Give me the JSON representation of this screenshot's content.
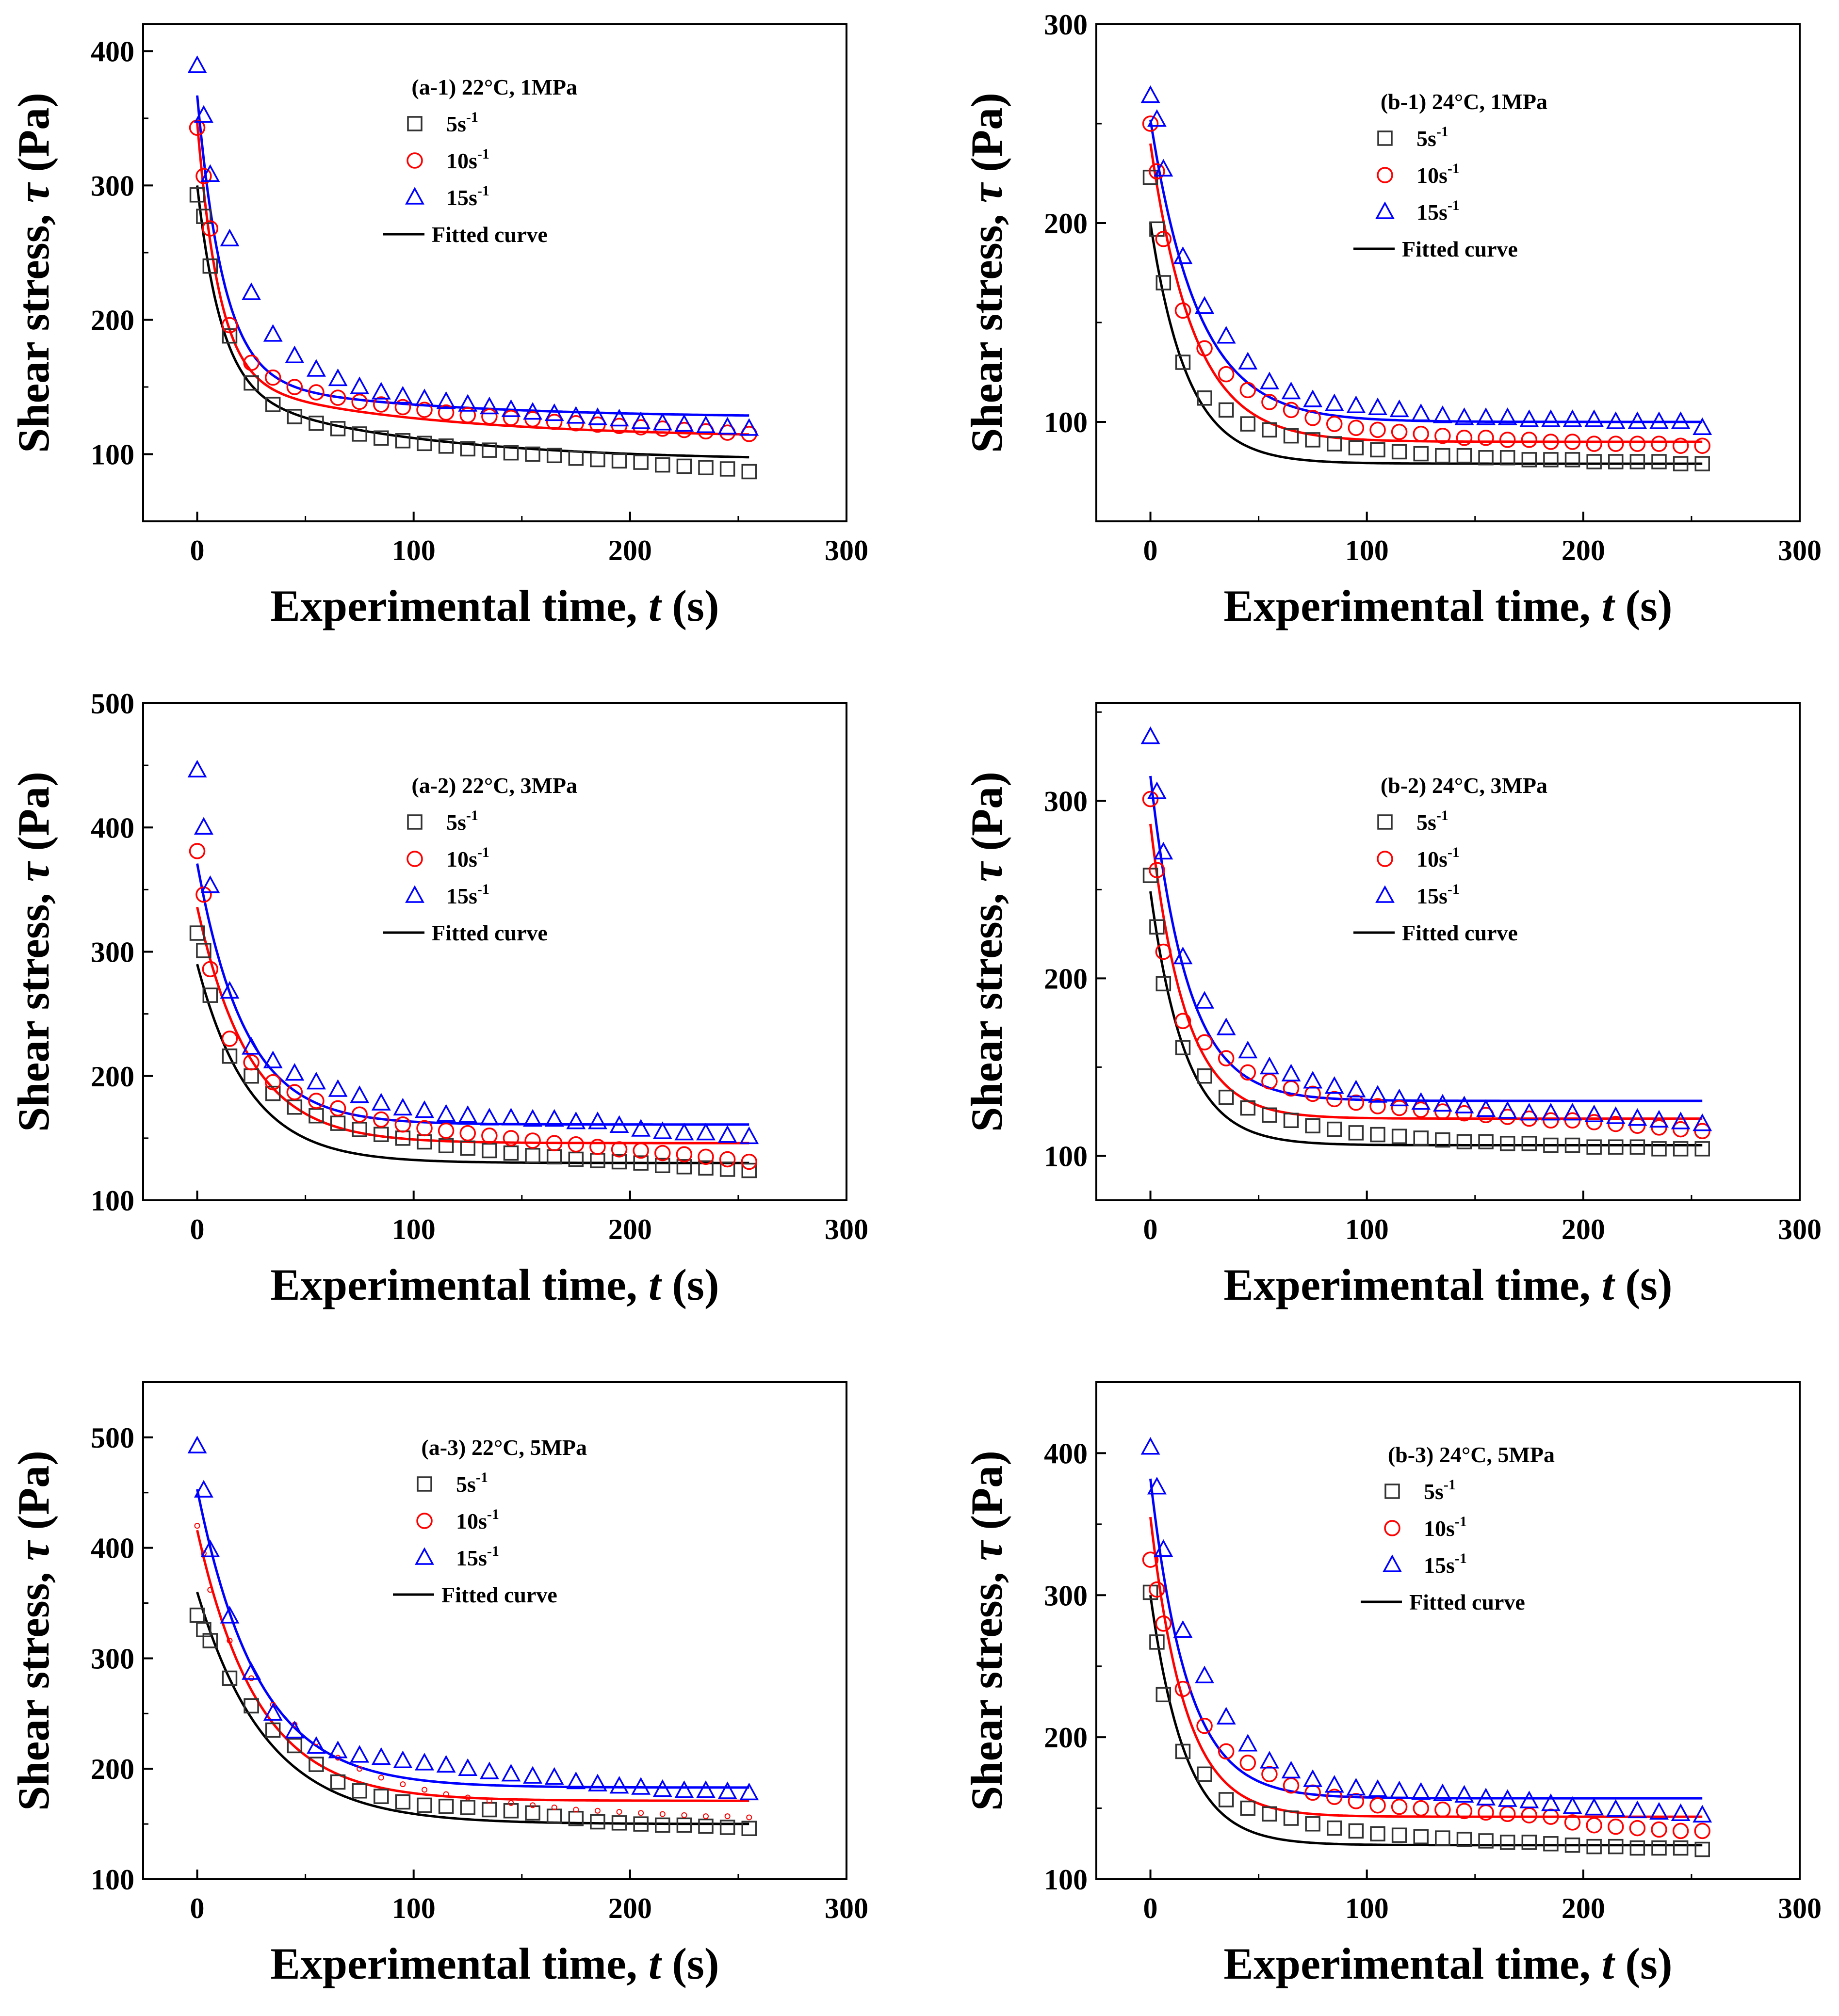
{
  "colors": {
    "s5": "#333333",
    "s10": "#ff0000",
    "s15": "#0000ff",
    "fit": "#000000",
    "fit10": "#ff0000",
    "fit15": "#0000ff"
  },
  "chart_data": [
    {
      "id": "a1",
      "type": "scatter",
      "title": "(a-1) 22°C, 1MPa",
      "xlabel": "Experimental time, ",
      "xlabel_italic": "t",
      "xlabel_unit": " (s)",
      "ylabel": "Shear stress, ",
      "ylabel_italic": "τ",
      "ylabel_unit": " (Pa)",
      "xlim": [
        -25,
        300
      ],
      "ylim": [
        50,
        420
      ],
      "xticks": [
        0,
        100,
        200,
        300
      ],
      "yticks": [
        100,
        200,
        300,
        400
      ],
      "legend": {
        "s5": "5s",
        "s10": "10s",
        "s15": "15s",
        "sup": "-1",
        "fit": "Fitted curve"
      },
      "x": [
        0,
        3,
        6,
        15,
        25,
        35,
        45,
        55,
        65,
        75,
        85,
        95,
        105,
        115,
        125,
        135,
        145,
        155,
        165,
        175,
        185,
        195,
        205,
        215,
        225,
        235,
        245,
        255
      ],
      "series": [
        {
          "name": "5s-1",
          "values": [
            293,
            277,
            240,
            188,
            153,
            137,
            128,
            123,
            119,
            115,
            112,
            110,
            108,
            106,
            104,
            103,
            101,
            100,
            99,
            97,
            96,
            95,
            94,
            92,
            91,
            90,
            89,
            87
          ]
        },
        {
          "name": "10s-1",
          "values": [
            343,
            307,
            268,
            196,
            168,
            157,
            150,
            146,
            142,
            139,
            137,
            135,
            133,
            131,
            129,
            128,
            127,
            126,
            124,
            123,
            122,
            121,
            120,
            119,
            118,
            117,
            116,
            115
          ]
        },
        {
          "name": "15s-1",
          "values": [
            389,
            352,
            308,
            260,
            220,
            189,
            173,
            163,
            156,
            150,
            146,
            143,
            141,
            139,
            137,
            135,
            133,
            131,
            130,
            128,
            127,
            126,
            124,
            123,
            122,
            121,
            120,
            119
          ]
        }
      ],
      "fits": [
        {
          "name": "5s-1",
          "base": 95,
          "a1": 150,
          "t1": 11,
          "a2": 55,
          "t2": 85
        },
        {
          "name": "10s-1",
          "base": 112,
          "a1": 190,
          "t1": 10,
          "a2": 45,
          "t2": 90
        },
        {
          "name": "15s-1",
          "base": 127,
          "a1": 210,
          "t1": 12,
          "a2": 30,
          "t2": 90
        }
      ]
    },
    {
      "id": "b1",
      "type": "scatter",
      "title": "(b-1) 24°C, 1MPa",
      "xlabel": "Experimental time, ",
      "xlabel_italic": "t",
      "xlabel_unit": " (s)",
      "ylabel": "Shear stress, ",
      "ylabel_italic": "τ",
      "ylabel_unit": " (Pa)",
      "xlim": [
        -25,
        300
      ],
      "ylim": [
        50,
        300
      ],
      "xticks": [
        0,
        100,
        200,
        300
      ],
      "yticks": [
        100,
        200,
        300
      ],
      "legend": {
        "s5": "5s",
        "s10": "10s",
        "s15": "15s",
        "sup": "-1",
        "fit": "Fitted curve"
      },
      "x": [
        0,
        3,
        6,
        15,
        25,
        35,
        45,
        55,
        65,
        75,
        85,
        95,
        105,
        115,
        125,
        135,
        145,
        155,
        165,
        175,
        185,
        195,
        205,
        215,
        225,
        235,
        245,
        255
      ],
      "series": [
        {
          "name": "5s-1",
          "values": [
            223,
            197,
            170,
            130,
            112,
            106,
            99,
            96,
            93,
            91,
            89,
            87,
            86,
            85,
            84,
            83,
            83,
            82,
            82,
            81,
            81,
            81,
            80,
            80,
            80,
            80,
            79,
            79
          ]
        },
        {
          "name": "10s-1",
          "values": [
            250,
            226,
            192,
            156,
            137,
            124,
            116,
            110,
            106,
            102,
            99,
            97,
            96,
            95,
            94,
            93,
            92,
            92,
            91,
            91,
            90,
            90,
            89,
            89,
            89,
            89,
            88,
            88
          ]
        },
        {
          "name": "15s-1",
          "values": [
            264,
            252,
            227,
            183,
            158,
            143,
            130,
            120,
            115,
            111,
            109,
            108,
            107,
            106,
            104,
            103,
            102,
            102,
            102,
            101,
            101,
            101,
            101,
            100,
            100,
            100,
            100,
            97
          ]
        }
      ],
      "fits": [
        {
          "name": "5s-1",
          "base": 79,
          "a1": 121,
          "t1": 17,
          "a2": 0,
          "t2": 50
        },
        {
          "name": "10s-1",
          "base": 90,
          "a1": 150,
          "t1": 20,
          "a2": 0,
          "t2": 50
        },
        {
          "name": "15s-1",
          "base": 100,
          "a1": 152,
          "t1": 22,
          "a2": 0,
          "t2": 50
        }
      ]
    },
    {
      "id": "a2",
      "type": "scatter",
      "title": "(a-2) 22°C, 3MPa",
      "xlabel": "Experimental time, ",
      "xlabel_italic": "t",
      "xlabel_unit": " (s)",
      "ylabel": "Shear stress, ",
      "ylabel_italic": "τ",
      "ylabel_unit": " (Pa)",
      "xlim": [
        -25,
        300
      ],
      "ylim": [
        100,
        500
      ],
      "xticks": [
        0,
        100,
        200,
        300
      ],
      "yticks": [
        100,
        200,
        300,
        400,
        500
      ],
      "legend": {
        "s5": "5s",
        "s10": "10s",
        "s15": "15s",
        "sup": "-1",
        "fit": "Fitted curve"
      },
      "x": [
        0,
        3,
        6,
        15,
        25,
        35,
        45,
        55,
        65,
        75,
        85,
        95,
        105,
        115,
        125,
        135,
        145,
        155,
        165,
        175,
        185,
        195,
        205,
        215,
        225,
        235,
        245,
        255
      ],
      "series": [
        {
          "name": "5s-1",
          "values": [
            315,
            301,
            265,
            216,
            200,
            186,
            175,
            168,
            162,
            157,
            153,
            150,
            147,
            144,
            142,
            140,
            138,
            136,
            135,
            133,
            132,
            131,
            130,
            128,
            127,
            126,
            125,
            124
          ]
        },
        {
          "name": "10s-1",
          "values": [
            381,
            346,
            286,
            230,
            211,
            195,
            187,
            180,
            174,
            169,
            165,
            161,
            158,
            156,
            154,
            152,
            150,
            148,
            146,
            145,
            143,
            141,
            140,
            138,
            137,
            135,
            133,
            131
          ]
        },
        {
          "name": "15s-1",
          "values": [
            446,
            400,
            353,
            268,
            223,
            212,
            202,
            195,
            189,
            184,
            178,
            174,
            172,
            169,
            168,
            166,
            166,
            165,
            165,
            163,
            163,
            160,
            157,
            155,
            154,
            154,
            152,
            151
          ]
        }
      ],
      "fits": [
        {
          "name": "5s-1",
          "base": 130,
          "a1": 160,
          "t1": 24,
          "a2": 0,
          "t2": 50
        },
        {
          "name": "10s-1",
          "base": 146,
          "a1": 190,
          "t1": 24,
          "a2": 0,
          "t2": 50
        },
        {
          "name": "15s-1",
          "base": 161,
          "a1": 210,
          "t1": 22,
          "a2": 0,
          "t2": 50
        }
      ]
    },
    {
      "id": "b2",
      "type": "scatter",
      "title": "(b-2) 24°C, 3MPa",
      "xlabel": "Experimental time, ",
      "xlabel_italic": "t",
      "xlabel_unit": " (s)",
      "ylabel": "Shear stress, ",
      "ylabel_italic": "τ",
      "ylabel_unit": " (Pa)",
      "xlim": [
        -25,
        300
      ],
      "ylim": [
        75,
        355
      ],
      "xticks": [
        0,
        100,
        200,
        300
      ],
      "yticks": [
        100,
        200,
        300
      ],
      "legend": {
        "s5": "5s",
        "s10": "10s",
        "s15": "15s",
        "sup": "-1",
        "fit": "Fitted curve"
      },
      "x": [
        0,
        3,
        6,
        15,
        25,
        35,
        45,
        55,
        65,
        75,
        85,
        95,
        105,
        115,
        125,
        135,
        145,
        155,
        165,
        175,
        185,
        195,
        205,
        215,
        225,
        235,
        245,
        255
      ],
      "series": [
        {
          "name": "5s-1",
          "values": [
            258,
            229,
            197,
            161,
            145,
            133,
            127,
            123,
            120,
            117,
            115,
            113,
            112,
            111,
            110,
            109,
            108,
            108,
            107,
            107,
            106,
            106,
            105,
            105,
            105,
            104,
            104,
            104
          ]
        },
        {
          "name": "10s-1",
          "values": [
            301,
            261,
            215,
            176,
            164,
            155,
            147,
            142,
            138,
            135,
            132,
            130,
            128,
            127,
            126,
            125,
            124,
            123,
            122,
            121,
            120,
            120,
            119,
            118,
            117,
            116,
            115,
            114
          ]
        },
        {
          "name": "15s-1",
          "values": [
            336,
            305,
            271,
            212,
            187,
            172,
            159,
            150,
            146,
            142,
            139,
            137,
            134,
            132,
            130,
            129,
            128,
            126,
            125,
            124,
            124,
            124,
            123,
            122,
            121,
            120,
            119,
            118
          ]
        }
      ],
      "fits": [
        {
          "name": "5s-1",
          "base": 106,
          "a1": 143,
          "t1": 16,
          "a2": 0,
          "t2": 50
        },
        {
          "name": "10s-1",
          "base": 121,
          "a1": 166,
          "t1": 16,
          "a2": 0,
          "t2": 50
        },
        {
          "name": "15s-1",
          "base": 131,
          "a1": 183,
          "t1": 17,
          "a2": 0,
          "t2": 50
        }
      ]
    },
    {
      "id": "a3",
      "type": "scatter",
      "title": "(a-3) 22°C, 5MPa",
      "xlabel": "Experimental time, ",
      "xlabel_italic": "t",
      "xlabel_unit": " (s)",
      "ylabel": "Shear stress, ",
      "ylabel_italic": "τ",
      "ylabel_unit": " (Pa)",
      "xlim": [
        -25,
        300
      ],
      "ylim": [
        100,
        550
      ],
      "xticks": [
        0,
        100,
        200,
        300
      ],
      "yticks": [
        100,
        200,
        300,
        400,
        500
      ],
      "legend": {
        "s5": "5s",
        "s10": "10s",
        "s15": "15s",
        "sup": "-1",
        "fit": "Fitted curve"
      },
      "x": [
        0,
        3,
        6,
        15,
        25,
        35,
        45,
        55,
        65,
        75,
        85,
        95,
        105,
        115,
        125,
        135,
        145,
        155,
        165,
        175,
        185,
        195,
        205,
        215,
        225,
        235,
        245,
        255
      ],
      "series": [
        {
          "name": "5s-1",
          "values": [
            339,
            326,
            316,
            282,
            257,
            235,
            221,
            204,
            188,
            180,
            175,
            170,
            167,
            166,
            165,
            163,
            162,
            160,
            157,
            155,
            152,
            151,
            150,
            149,
            149,
            148,
            147,
            146
          ]
        },
        {
          "name": "10s-1",
          "values": [
            420,
            395,
            362,
            316,
            282,
            258,
            240,
            224,
            210,
            200,
            192,
            186,
            181,
            177,
            174,
            171,
            169,
            167,
            165,
            163,
            162,
            161,
            160,
            159,
            158,
            157,
            157,
            156
          ]
        },
        {
          "name": "15s-1",
          "values": [
            492,
            452,
            398,
            338,
            287,
            250,
            234,
            220,
            216,
            212,
            210,
            207,
            205,
            203,
            200,
            197,
            195,
            193,
            192,
            188,
            186,
            184,
            183,
            181,
            180,
            180,
            179,
            178
          ]
        }
      ],
      "fits": [
        {
          "name": "5s-1",
          "base": 150,
          "a1": 210,
          "t1": 32,
          "a2": 0,
          "t2": 50
        },
        {
          "name": "10s-1",
          "base": 171,
          "a1": 245,
          "t1": 28,
          "a2": 0,
          "t2": 50
        },
        {
          "name": "15s-1",
          "base": 183,
          "a1": 270,
          "t1": 28,
          "a2": 0,
          "t2": 50
        }
      ]
    },
    {
      "id": "b3",
      "type": "scatter",
      "title": "(b-3) 24°C, 5MPa",
      "xlabel": "Experimental time, ",
      "xlabel_italic": "t",
      "xlabel_unit": " (s)",
      "ylabel": "Shear stress, ",
      "ylabel_italic": "τ",
      "ylabel_unit": " (Pa)",
      "xlim": [
        -25,
        300
      ],
      "ylim": [
        100,
        450
      ],
      "xticks": [
        0,
        100,
        200,
        300
      ],
      "yticks": [
        100,
        200,
        300,
        400
      ],
      "legend": {
        "s5": "5s",
        "s10": "10s",
        "s15": "15s",
        "sup": "-1",
        "fit": "Fitted curve"
      },
      "x": [
        0,
        3,
        6,
        15,
        25,
        35,
        45,
        55,
        65,
        75,
        85,
        95,
        105,
        115,
        125,
        135,
        145,
        155,
        165,
        175,
        185,
        195,
        205,
        215,
        225,
        235,
        245,
        255
      ],
      "series": [
        {
          "name": "5s-1",
          "values": [
            302,
            267,
            230,
            190,
            174,
            156,
            150,
            146,
            143,
            139,
            136,
            134,
            132,
            131,
            130,
            129,
            128,
            127,
            126,
            126,
            125,
            124,
            123,
            123,
            122,
            122,
            122,
            121
          ]
        },
        {
          "name": "10s-1",
          "values": [
            325,
            304,
            280,
            234,
            208,
            190,
            182,
            174,
            166,
            161,
            158,
            155,
            152,
            151,
            150,
            149,
            148,
            147,
            146,
            145,
            144,
            140,
            138,
            137,
            136,
            135,
            134,
            134
          ]
        },
        {
          "name": "15s-1",
          "values": [
            404,
            376,
            332,
            275,
            243,
            214,
            195,
            183,
            176,
            170,
            166,
            164,
            163,
            162,
            161,
            160,
            159,
            157,
            156,
            155,
            153,
            151,
            150,
            149,
            148,
            147,
            146,
            145
          ]
        }
      ],
      "fits": [
        {
          "name": "5s-1",
          "base": 124,
          "a1": 176,
          "t1": 16,
          "a2": 0,
          "t2": 50
        },
        {
          "name": "10s-1",
          "base": 144,
          "a1": 211,
          "t1": 16,
          "a2": 0,
          "t2": 50
        },
        {
          "name": "15s-1",
          "base": 157,
          "a1": 225,
          "t1": 17,
          "a2": 0,
          "t2": 50
        }
      ]
    }
  ]
}
